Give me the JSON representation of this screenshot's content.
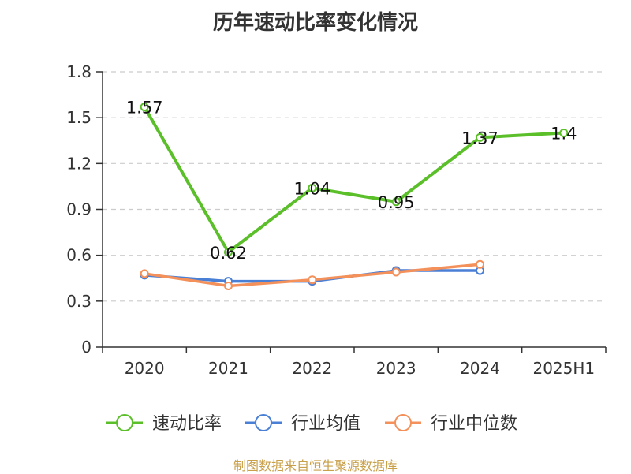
{
  "chart_data": {
    "type": "line",
    "title": "历年速动比率变化情况",
    "categories": [
      "2020",
      "2021",
      "2022",
      "2023",
      "2024",
      "2025H1"
    ],
    "ylim": [
      0,
      1.8
    ],
    "yticks": [
      "0",
      "0.3",
      "0.6",
      "0.9",
      "1.2",
      "1.5",
      "1.8"
    ],
    "grid": true,
    "legend_position": "bottom",
    "series": [
      {
        "name": "速动比率",
        "color": "#5bbf2a",
        "values": [
          1.57,
          0.62,
          1.04,
          0.95,
          1.37,
          1.4
        ],
        "labels": [
          "1.57",
          "0.62",
          "1.04",
          "0.95",
          "1.37",
          "1.4"
        ]
      },
      {
        "name": "行业均值",
        "color": "#4a7fd6",
        "values": [
          0.47,
          0.43,
          0.43,
          0.5,
          0.5,
          null
        ]
      },
      {
        "name": "行业中位数",
        "color": "#f4905a",
        "values": [
          0.48,
          0.4,
          0.44,
          0.49,
          0.54,
          null
        ]
      }
    ]
  },
  "footer": {
    "source": "制图数据来自恒生聚源数据库"
  }
}
